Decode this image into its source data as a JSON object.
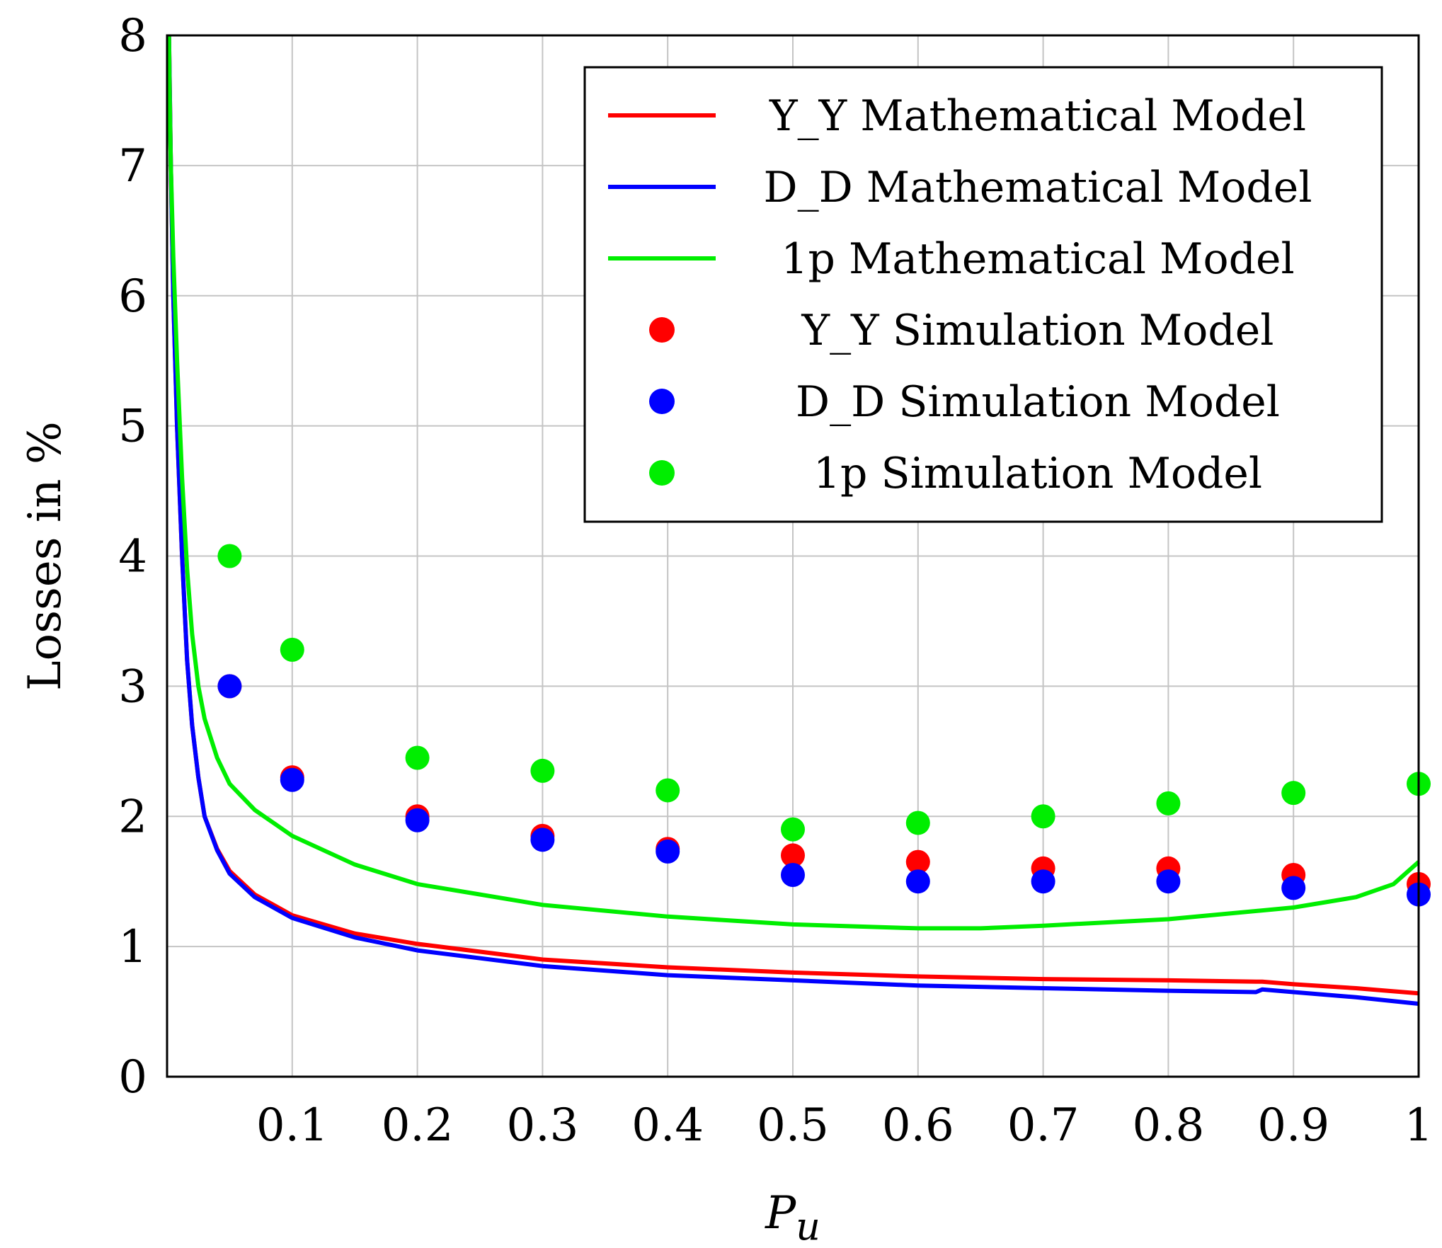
{
  "chart_data": {
    "type": "line",
    "title": "",
    "xlabel": "P_u",
    "ylabel": "Losses in %",
    "xlim": [
      0,
      1
    ],
    "ylim": [
      0,
      8
    ],
    "grid": true,
    "legend_position": "top-right",
    "x_ticks": [
      0.1,
      0.2,
      0.3,
      0.4,
      0.5,
      0.6,
      0.7,
      0.8,
      0.9,
      1
    ],
    "x_tick_labels": [
      "0.1",
      "0.2",
      "0.3",
      "0.4",
      "0.5",
      "0.6",
      "0.7",
      "0.8",
      "0.9",
      "1"
    ],
    "y_ticks": [
      0,
      1,
      2,
      3,
      4,
      5,
      6,
      7,
      8
    ],
    "y_tick_labels": [
      "0",
      "1",
      "2",
      "3",
      "4",
      "5",
      "6",
      "7",
      "8"
    ],
    "series": [
      {
        "name": "Y_Y Mathematical Model",
        "kind": "line",
        "color": "#ff0000",
        "x": [
          0.0015,
          0.003,
          0.005,
          0.008,
          0.012,
          0.016,
          0.02,
          0.025,
          0.03,
          0.04,
          0.05,
          0.07,
          0.1,
          0.15,
          0.2,
          0.3,
          0.4,
          0.5,
          0.6,
          0.7,
          0.8,
          0.87,
          0.875,
          0.9,
          0.95,
          1.0
        ],
        "values": [
          8.0,
          7.0,
          6.0,
          5.0,
          4.0,
          3.2,
          2.7,
          2.3,
          2.0,
          1.75,
          1.58,
          1.4,
          1.24,
          1.1,
          1.02,
          0.9,
          0.84,
          0.8,
          0.77,
          0.75,
          0.74,
          0.73,
          0.73,
          0.71,
          0.68,
          0.64
        ]
      },
      {
        "name": "D_D Mathematical Model",
        "kind": "line",
        "color": "#0000ff",
        "x": [
          0.0015,
          0.003,
          0.005,
          0.008,
          0.012,
          0.016,
          0.02,
          0.025,
          0.03,
          0.04,
          0.05,
          0.07,
          0.1,
          0.15,
          0.2,
          0.3,
          0.4,
          0.5,
          0.6,
          0.7,
          0.8,
          0.87,
          0.875,
          0.9,
          0.95,
          1.0
        ],
        "values": [
          8.0,
          7.0,
          6.0,
          5.0,
          4.0,
          3.2,
          2.7,
          2.3,
          2.0,
          1.74,
          1.56,
          1.38,
          1.22,
          1.07,
          0.97,
          0.85,
          0.78,
          0.74,
          0.7,
          0.68,
          0.66,
          0.65,
          0.67,
          0.65,
          0.61,
          0.56
        ]
      },
      {
        "name": "1p Mathematical Model",
        "kind": "line",
        "color": "#00ee00",
        "x": [
          0.0015,
          0.002,
          0.003,
          0.005,
          0.008,
          0.012,
          0.016,
          0.02,
          0.025,
          0.03,
          0.04,
          0.05,
          0.07,
          0.1,
          0.15,
          0.2,
          0.3,
          0.4,
          0.5,
          0.6,
          0.65,
          0.7,
          0.8,
          0.9,
          0.95,
          0.98,
          1.0
        ],
        "values": [
          8.0,
          7.6,
          7.0,
          6.3,
          5.5,
          4.6,
          3.9,
          3.4,
          3.0,
          2.75,
          2.45,
          2.25,
          2.05,
          1.85,
          1.63,
          1.48,
          1.32,
          1.23,
          1.17,
          1.14,
          1.14,
          1.16,
          1.21,
          1.3,
          1.38,
          1.48,
          1.65
        ]
      },
      {
        "name": "Y_Y Simulation Model",
        "kind": "scatter",
        "color": "#ff0000",
        "x": [
          0.05,
          0.1,
          0.2,
          0.3,
          0.4,
          0.5,
          0.6,
          0.7,
          0.8,
          0.9,
          1.0
        ],
        "values": [
          3.0,
          2.3,
          2.0,
          1.85,
          1.75,
          1.7,
          1.65,
          1.6,
          1.6,
          1.55,
          1.48
        ]
      },
      {
        "name": "D_D Simulation Model",
        "kind": "scatter",
        "color": "#0000ff",
        "x": [
          0.05,
          0.1,
          0.2,
          0.3,
          0.4,
          0.5,
          0.6,
          0.7,
          0.8,
          0.9,
          1.0
        ],
        "values": [
          3.0,
          2.28,
          1.97,
          1.82,
          1.73,
          1.55,
          1.5,
          1.5,
          1.5,
          1.45,
          1.4
        ]
      },
      {
        "name": "1p Simulation Model",
        "kind": "scatter",
        "color": "#00ee00",
        "x": [
          0.05,
          0.1,
          0.2,
          0.3,
          0.4,
          0.5,
          0.6,
          0.7,
          0.8,
          0.9,
          1.0
        ],
        "values": [
          4.0,
          3.28,
          2.45,
          2.35,
          2.2,
          1.9,
          1.95,
          2.0,
          2.1,
          2.18,
          2.25
        ]
      }
    ]
  }
}
